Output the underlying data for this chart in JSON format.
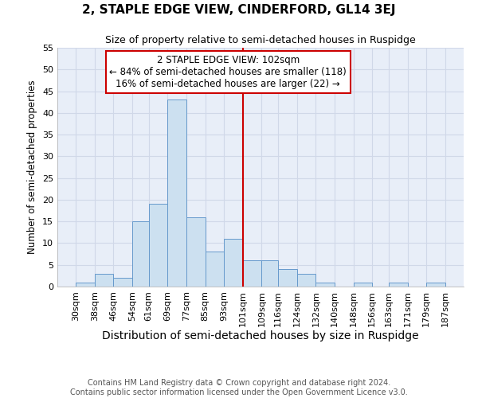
{
  "title": "2, STAPLE EDGE VIEW, CINDERFORD, GL14 3EJ",
  "subtitle": "Size of property relative to semi-detached houses in Ruspidge",
  "xlabel": "Distribution of semi-detached houses by size in Ruspidge",
  "ylabel": "Number of semi-detached properties",
  "bin_edges": [
    30,
    38,
    46,
    54,
    61,
    69,
    77,
    85,
    93,
    101,
    109,
    116,
    124,
    132,
    140,
    148,
    156,
    163,
    171,
    179,
    187
  ],
  "bar_heights": [
    1,
    3,
    2,
    15,
    19,
    43,
    16,
    8,
    11,
    6,
    6,
    4,
    3,
    1,
    0,
    1,
    0,
    1,
    0,
    1
  ],
  "bar_color": "#cce0f0",
  "bar_edge_color": "#6699cc",
  "vline_x": 101,
  "vline_color": "#cc0000",
  "annotation_line1": "2 STAPLE EDGE VIEW: 102sqm",
  "annotation_line2": "← 84% of semi-detached houses are smaller (118)",
  "annotation_line3": "16% of semi-detached houses are larger (22) →",
  "annotation_box_color": "#cc0000",
  "annotation_box_bg": "#ffffff",
  "ylim": [
    0,
    55
  ],
  "yticks": [
    0,
    5,
    10,
    15,
    20,
    25,
    30,
    35,
    40,
    45,
    50,
    55
  ],
  "plot_bg_color": "#e8eef8",
  "fig_bg_color": "#ffffff",
  "grid_color": "#d0d8e8",
  "footer": "Contains HM Land Registry data © Crown copyright and database right 2024.\nContains public sector information licensed under the Open Government Licence v3.0.",
  "title_fontsize": 11,
  "subtitle_fontsize": 9,
  "xlabel_fontsize": 10,
  "ylabel_fontsize": 8.5,
  "tick_fontsize": 8,
  "footer_fontsize": 7,
  "annot_fontsize": 8.5,
  "tick_labels": [
    "30sqm",
    "38sqm",
    "46sqm",
    "54sqm",
    "61sqm",
    "69sqm",
    "77sqm",
    "85sqm",
    "93sqm",
    "101sqm",
    "109sqm",
    "116sqm",
    "124sqm",
    "132sqm",
    "140sqm",
    "148sqm",
    "156sqm",
    "163sqm",
    "171sqm",
    "179sqm",
    "187sqm"
  ]
}
